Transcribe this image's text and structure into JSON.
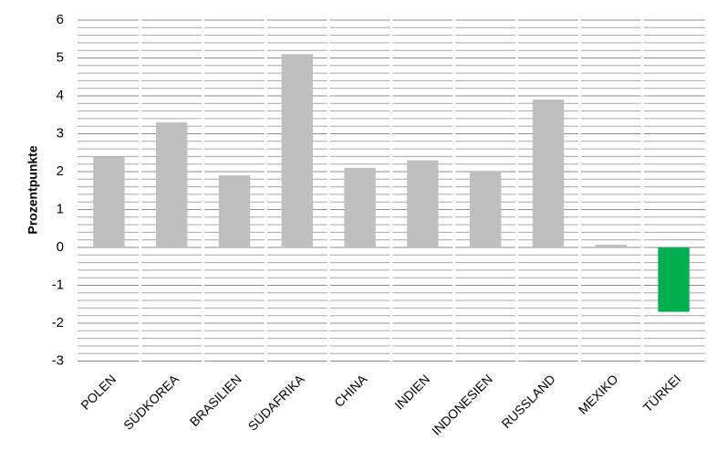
{
  "chart_data": {
    "type": "bar",
    "y_label": "Prozentpunkte",
    "categories": [
      "POLEN",
      "SÜDKOREA",
      "BRASILIEN",
      "SÜDAFRIKA",
      "CHINA",
      "INDIEN",
      "INDONESIEN",
      "RUSSLAND",
      "MEXIKO",
      "TÜRKEI"
    ],
    "values": [
      2.4,
      3.3,
      1.9,
      5.1,
      2.1,
      2.3,
      2.0,
      3.9,
      0.07,
      -1.7
    ],
    "colors": [
      "#bfbfbf",
      "#bfbfbf",
      "#bfbfbf",
      "#bfbfbf",
      "#bfbfbf",
      "#bfbfbf",
      "#bfbfbf",
      "#bfbfbf",
      "#bfbfbf",
      "#00b050"
    ],
    "ylim": [
      -3,
      6
    ],
    "yticks": [
      -3,
      -2,
      -1,
      0,
      1,
      2,
      3,
      4,
      5,
      6
    ],
    "grid": true
  }
}
